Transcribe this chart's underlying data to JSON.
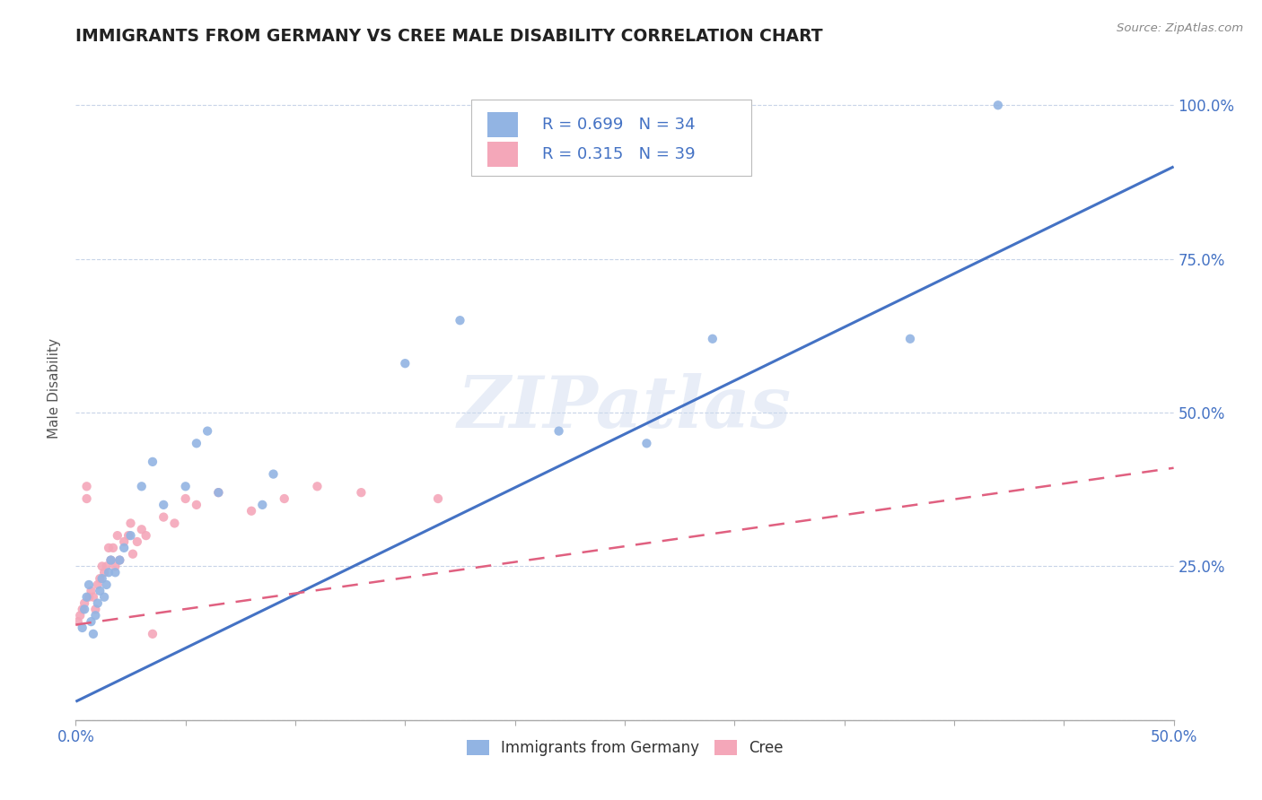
{
  "title": "IMMIGRANTS FROM GERMANY VS CREE MALE DISABILITY CORRELATION CHART",
  "source": "Source: ZipAtlas.com",
  "ylabel_label": "Male Disability",
  "xlim": [
    0.0,
    0.5
  ],
  "ylim": [
    0.0,
    1.08
  ],
  "ytick_positions": [
    0.0,
    0.25,
    0.5,
    0.75,
    1.0
  ],
  "yticklabels": [
    "",
    "25.0%",
    "50.0%",
    "75.0%",
    "100.0%"
  ],
  "blue_R": "0.699",
  "blue_N": "34",
  "pink_R": "0.315",
  "pink_N": "39",
  "blue_color": "#92b4e3",
  "pink_color": "#f4a7b9",
  "blue_line_color": "#4472c4",
  "pink_line_color": "#e06080",
  "legend_text_color": "#4472c4",
  "watermark": "ZIPatlas",
  "blue_scatter_x": [
    0.003,
    0.004,
    0.005,
    0.006,
    0.007,
    0.008,
    0.009,
    0.01,
    0.011,
    0.012,
    0.013,
    0.014,
    0.015,
    0.016,
    0.018,
    0.02,
    0.022,
    0.025,
    0.03,
    0.035,
    0.04,
    0.05,
    0.055,
    0.06,
    0.065,
    0.085,
    0.09,
    0.15,
    0.175,
    0.22,
    0.26,
    0.29,
    0.38,
    0.42
  ],
  "blue_scatter_y": [
    0.15,
    0.18,
    0.2,
    0.22,
    0.16,
    0.14,
    0.17,
    0.19,
    0.21,
    0.23,
    0.2,
    0.22,
    0.24,
    0.26,
    0.24,
    0.26,
    0.28,
    0.3,
    0.38,
    0.42,
    0.35,
    0.38,
    0.45,
    0.47,
    0.37,
    0.35,
    0.4,
    0.58,
    0.65,
    0.47,
    0.45,
    0.62,
    0.62,
    1.0
  ],
  "pink_scatter_x": [
    0.001,
    0.002,
    0.003,
    0.004,
    0.005,
    0.005,
    0.006,
    0.007,
    0.008,
    0.009,
    0.01,
    0.011,
    0.012,
    0.013,
    0.014,
    0.015,
    0.016,
    0.017,
    0.018,
    0.019,
    0.02,
    0.022,
    0.024,
    0.025,
    0.026,
    0.028,
    0.03,
    0.032,
    0.035,
    0.04,
    0.045,
    0.05,
    0.055,
    0.065,
    0.08,
    0.095,
    0.11,
    0.13,
    0.165
  ],
  "pink_scatter_y": [
    0.16,
    0.17,
    0.18,
    0.19,
    0.36,
    0.38,
    0.2,
    0.21,
    0.2,
    0.18,
    0.22,
    0.23,
    0.25,
    0.24,
    0.25,
    0.28,
    0.26,
    0.28,
    0.25,
    0.3,
    0.26,
    0.29,
    0.3,
    0.32,
    0.27,
    0.29,
    0.31,
    0.3,
    0.14,
    0.33,
    0.32,
    0.36,
    0.35,
    0.37,
    0.34,
    0.36,
    0.38,
    0.37,
    0.36
  ],
  "blue_line_x0": 0.0,
  "blue_line_x1": 0.5,
  "blue_line_y0": 0.03,
  "blue_line_y1": 0.9,
  "pink_line_x0": 0.0,
  "pink_line_x1": 0.5,
  "pink_line_y0": 0.155,
  "pink_line_y1": 0.41
}
